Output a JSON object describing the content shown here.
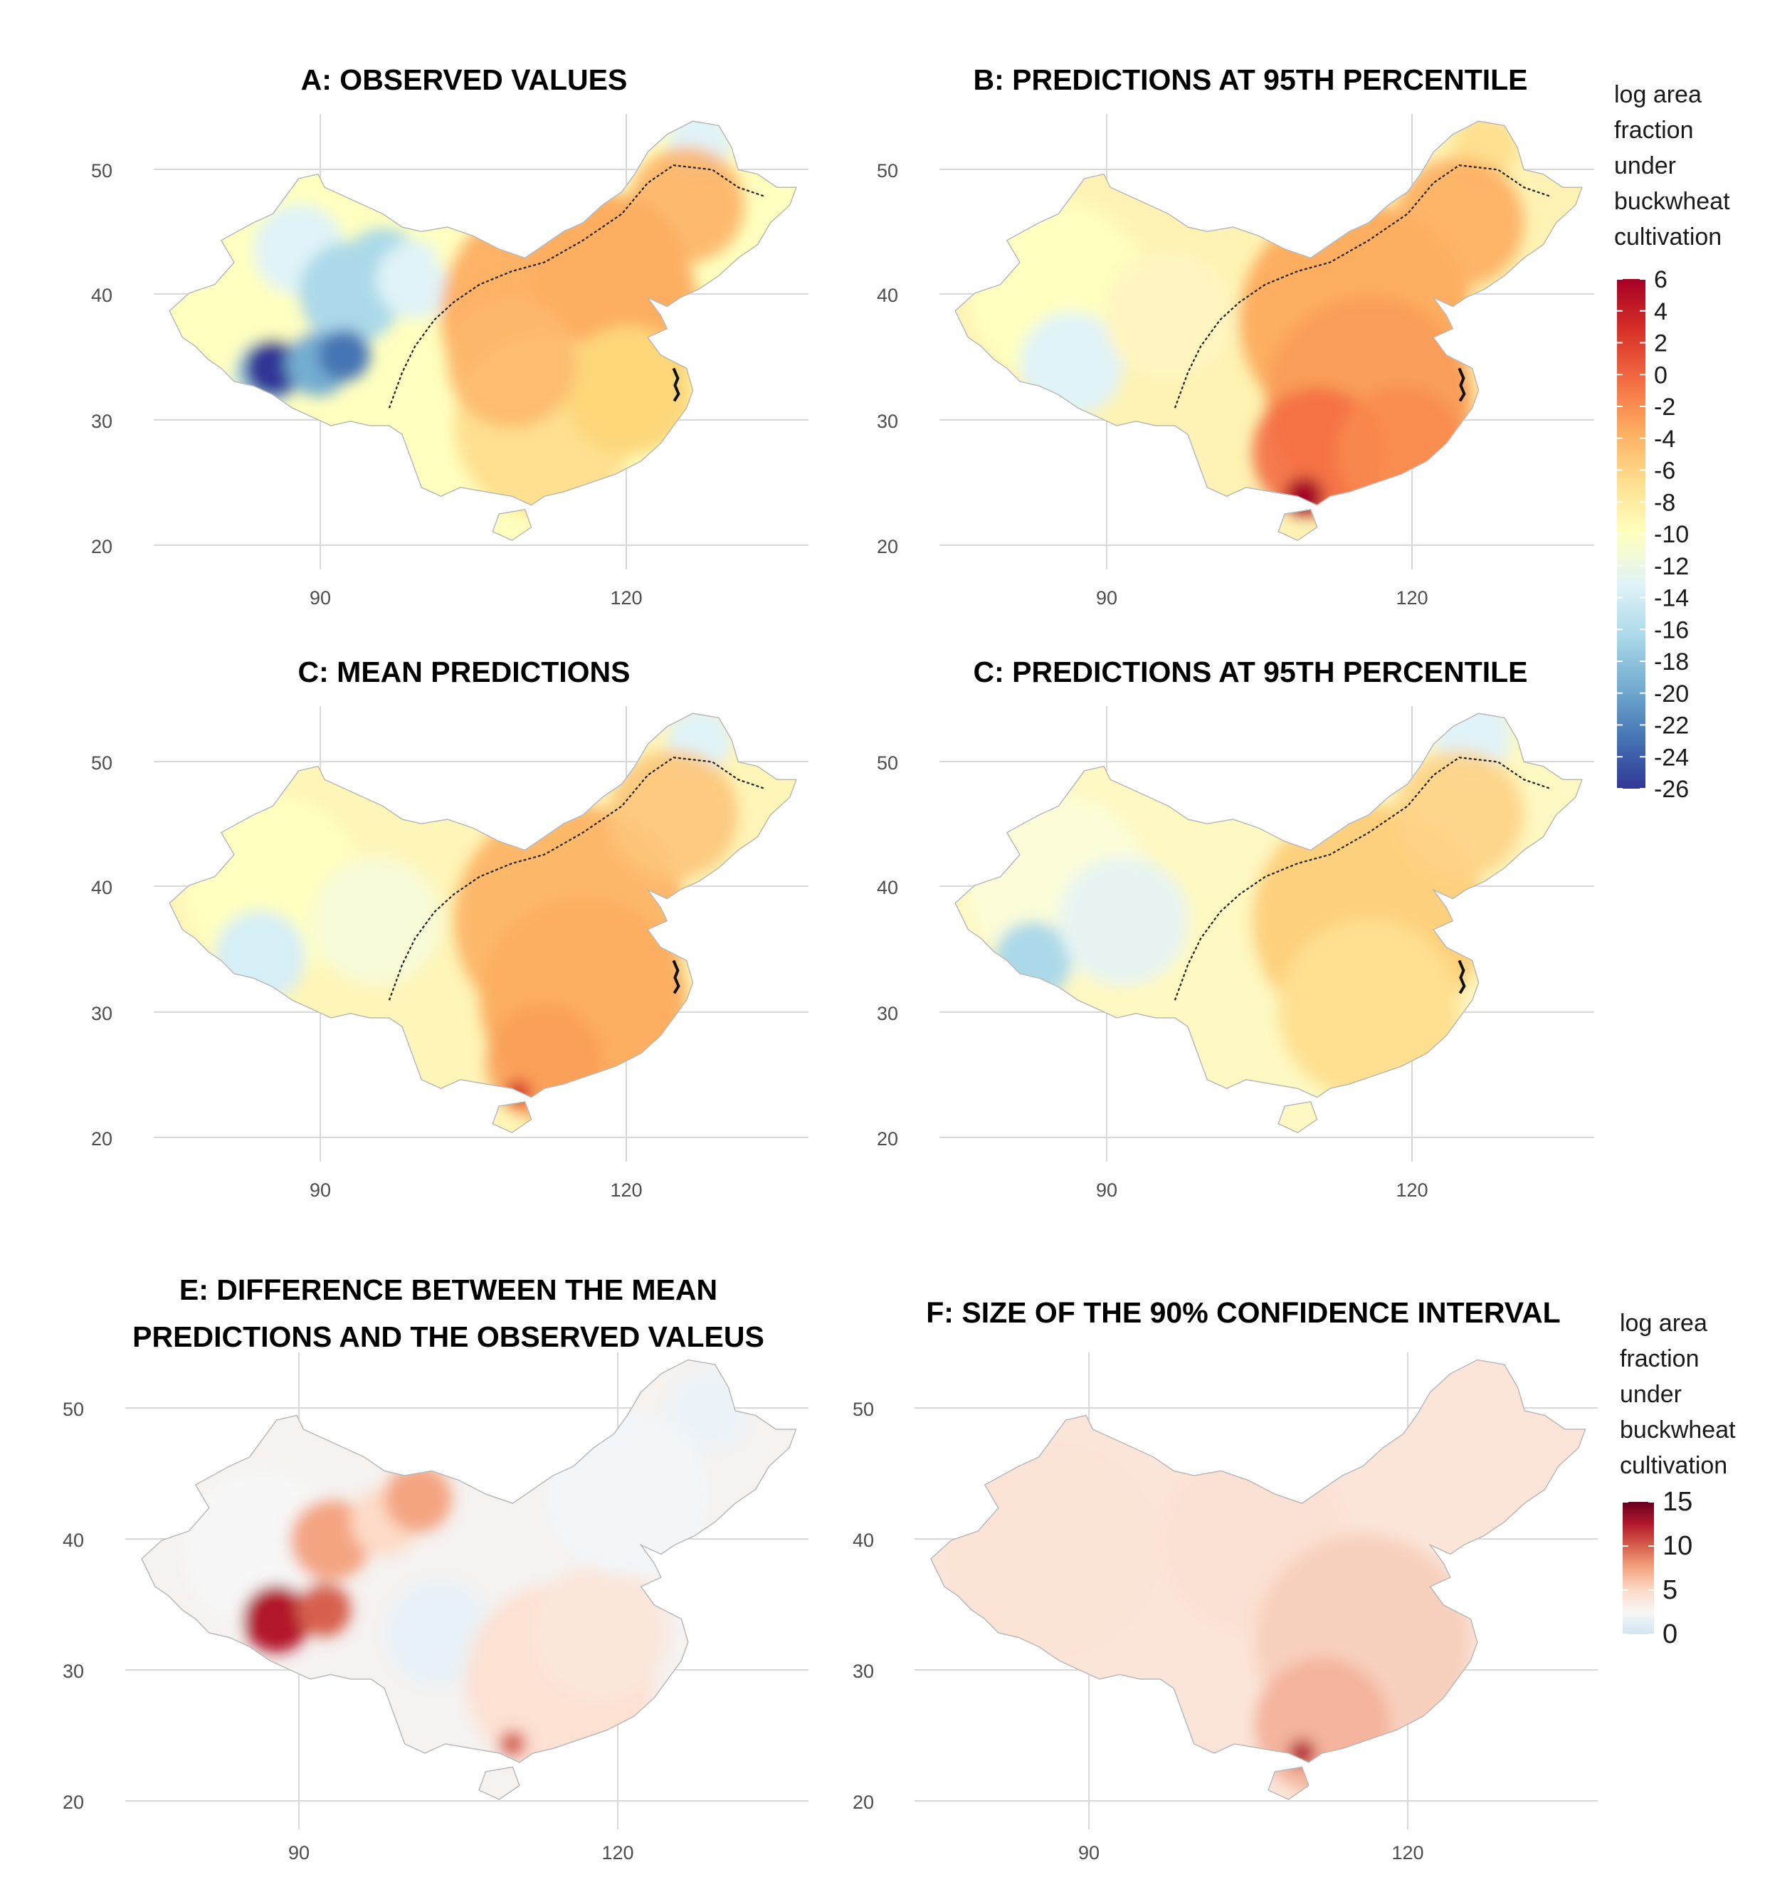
{
  "panels": [
    {
      "id": "A",
      "title_lines": [
        "A: OBSERVED VALUES"
      ],
      "x_ticks": [
        "90",
        "120"
      ],
      "y_ticks": [
        "50",
        "40",
        "30",
        "20"
      ]
    },
    {
      "id": "B",
      "title_lines": [
        "B: PREDICTIONS AT 95TH PERCENTILE"
      ],
      "x_ticks": [
        "90",
        "120"
      ],
      "y_ticks": [
        "50",
        "40",
        "30",
        "20"
      ]
    },
    {
      "id": "C",
      "title_lines": [
        "C: MEAN PREDICTIONS"
      ],
      "x_ticks": [
        "90",
        "120"
      ],
      "y_ticks": [
        "50",
        "40",
        "30",
        "20"
      ]
    },
    {
      "id": "D",
      "title_lines": [
        "C: PREDICTIONS AT 95TH PERCENTILE"
      ],
      "x_ticks": [
        "90",
        "120"
      ],
      "y_ticks": [
        "50",
        "40",
        "30",
        "20"
      ]
    },
    {
      "id": "E",
      "title_lines": [
        "E: DIFFERENCE BETWEEN THE MEAN",
        "PREDICTIONS AND THE OBSERVED VALEUS"
      ],
      "x_ticks": [
        "90",
        "120"
      ],
      "y_ticks": [
        "50",
        "40",
        "30",
        "20"
      ]
    },
    {
      "id": "F",
      "title_lines": [
        "F: SIZE OF THE 90% CONFIDENCE INTERVAL"
      ],
      "x_ticks": [
        "90",
        "120"
      ],
      "y_ticks": [
        "50",
        "40",
        "30",
        "20"
      ]
    }
  ],
  "legends": [
    {
      "id": "top",
      "title_lines": [
        "log area",
        "fraction",
        "under",
        "buckwheat",
        "cultivation"
      ],
      "ticks": [
        "6",
        "4",
        "2",
        "0",
        "-2",
        "-4",
        "-6",
        "-8",
        "-10",
        "-12",
        "-14",
        "-16",
        "-18",
        "-20",
        "-22",
        "-24",
        "-26"
      ],
      "range": [
        6,
        -26
      ],
      "colors": [
        "#a50026",
        "#d73027",
        "#f46d43",
        "#fdae61",
        "#fee090",
        "#ffffbf",
        "#e0f3f8",
        "#abd9e9",
        "#74add1",
        "#4575b4",
        "#313695"
      ]
    },
    {
      "id": "bottom",
      "title_lines": [
        "log area",
        "fraction",
        "under",
        "buckwheat",
        "cultivation"
      ],
      "ticks": [
        "15",
        "10",
        "5",
        "0"
      ],
      "range": [
        15,
        0
      ],
      "colors": [
        "#67001f",
        "#b2182b",
        "#d6604d",
        "#f4a582",
        "#fddbc7",
        "#f7f7f7",
        "#d1e5f0"
      ]
    }
  ]
}
